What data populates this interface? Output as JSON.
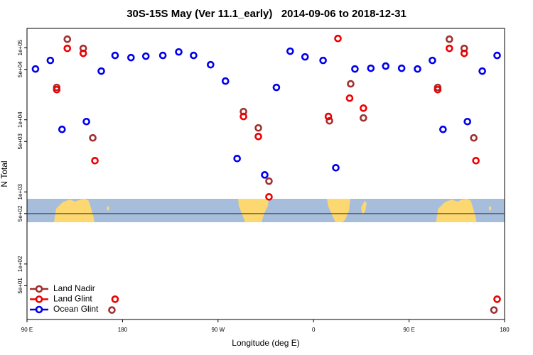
{
  "chart_data": {
    "type": "scatter",
    "title": "30S-15S May (Ver 11.1_early)   2014-09-06 to 2018-12-31",
    "xlabel": "Longitude (deg E)",
    "ylabel": "N Total",
    "xlim": [
      90,
      540
    ],
    "xticks": [
      {
        "value": 90,
        "label": "90 E"
      },
      180,
      {
        "value": 270,
        "label": "90 W"
      },
      {
        "value": 360,
        "label": "0"
      },
      {
        "value": 450,
        "label": "90 E"
      },
      {
        "value": 540,
        "label": "180"
      }
    ],
    "ylim": [
      17,
      185000
    ],
    "log_y": true,
    "yticks": [
      {
        "value": 50,
        "label": "5e+01"
      },
      {
        "value": 100,
        "label": "1e+02"
      },
      {
        "value": 500,
        "label": "5e+02"
      },
      {
        "value": 1000,
        "label": "1e+03"
      },
      {
        "value": 5000,
        "label": "5e+03"
      },
      {
        "value": 10000,
        "label": "1e+04"
      },
      {
        "value": 50000,
        "label": "5e+04"
      },
      {
        "value": 100000,
        "label": "1e+05"
      }
    ],
    "hline": 500,
    "legend": "lower left",
    "series": [
      {
        "name": "Land Nadir",
        "color": "#a03030",
        "x": [
          128,
          118,
          143,
          152,
          294,
          308,
          318,
          375,
          395,
          407,
          477,
          488,
          502,
          511,
          170,
          530
        ],
        "values": [
          131000,
          28100,
          97700,
          5610,
          13000,
          7710,
          1410,
          9670,
          31500,
          10600,
          28100,
          131000,
          97700,
          5610,
          23,
          23
        ]
      },
      {
        "name": "Land Glint",
        "color": "#ee0000",
        "x": [
          128,
          118,
          143,
          154,
          294,
          308,
          318,
          374,
          383,
          394,
          407,
          477,
          488,
          502,
          513,
          173,
          533
        ],
        "values": [
          97700,
          26200,
          83400,
          2710,
          11100,
          5860,
          853,
          11100,
          134000,
          19950,
          14500,
          26200,
          97700,
          83400,
          2710,
          32.5,
          32.5
        ]
      },
      {
        "name": "Ocean Glint",
        "color": "#0000ee",
        "x": [
          98,
          112,
          123,
          146,
          160,
          173,
          188,
          202,
          218,
          233,
          247,
          263,
          277,
          288,
          314,
          325,
          338,
          352,
          369,
          381,
          399,
          414,
          428,
          443,
          458,
          472,
          482,
          505,
          519,
          533
        ],
        "values": [
          50600,
          66500,
          7360,
          9440,
          47300,
          78000,
          72800,
          76200,
          78000,
          87300,
          78000,
          58000,
          34400,
          2900,
          1720,
          28100,
          89300,
          74500,
          66500,
          2160,
          50600,
          51800,
          55500,
          51800,
          50600,
          66500,
          7360,
          9440,
          47300,
          78000
        ]
      }
    ]
  }
}
